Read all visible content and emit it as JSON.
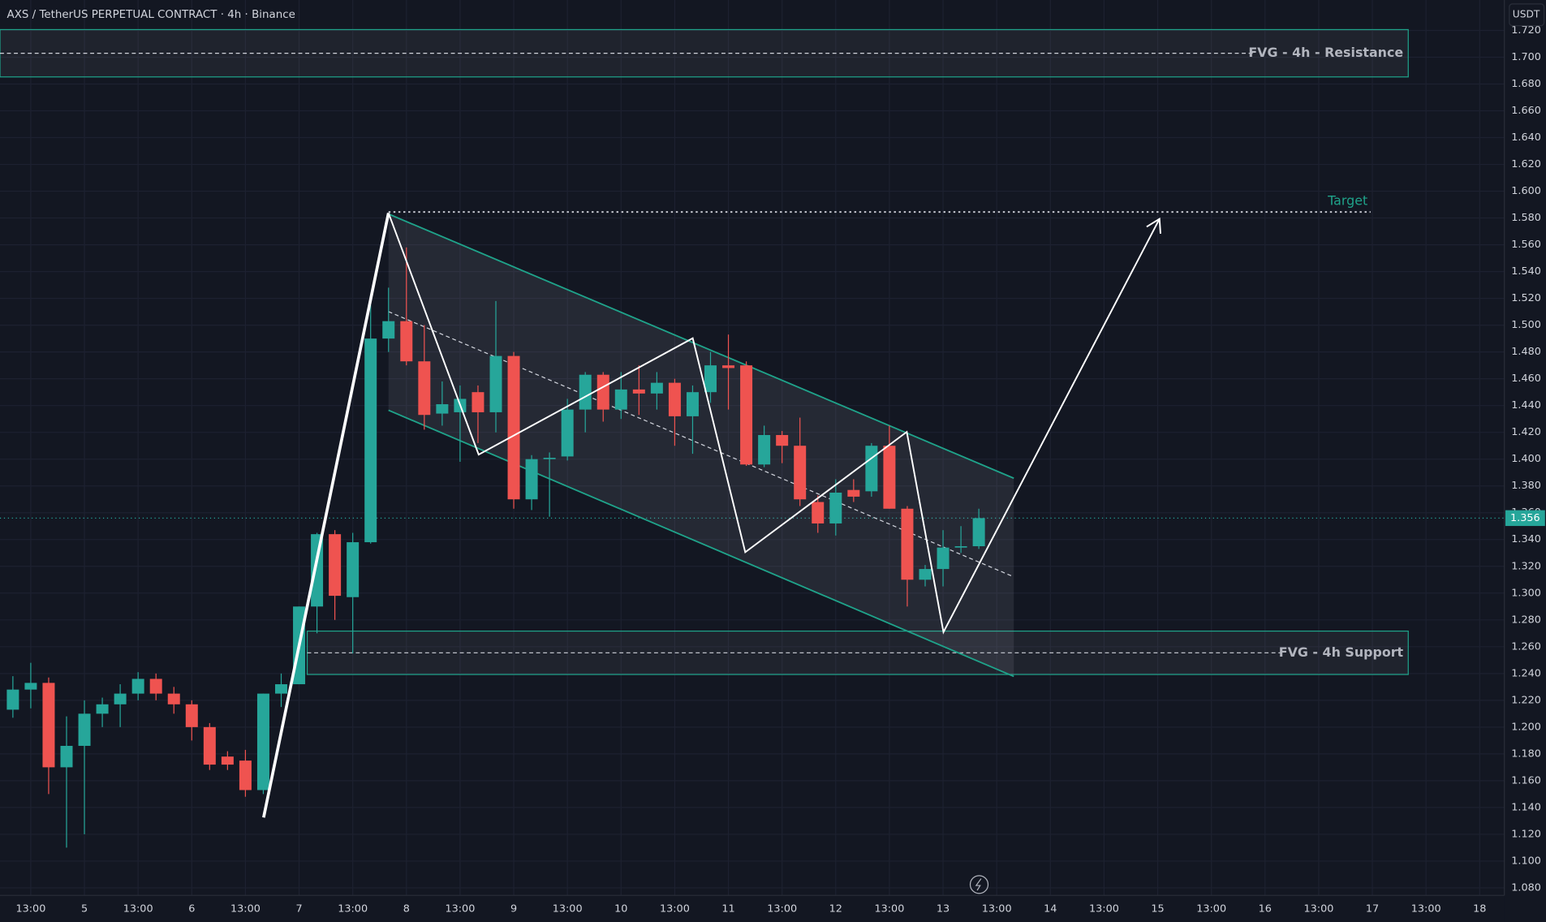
{
  "chart_data": {
    "type": "candlestick",
    "title": "AXS / TetherUS PERPETUAL CONTRACT · 4h · Binance",
    "currency": "USDT",
    "up_color": "#26a69a",
    "down_color": "#ef5350",
    "open": [
      1.213,
      1.228,
      1.233,
      1.17,
      1.186,
      1.21,
      1.217,
      1.225,
      1.236,
      1.225,
      1.217,
      1.2,
      1.178,
      1.175,
      1.153,
      1.225,
      1.232,
      1.29,
      1.344,
      1.297,
      1.338,
      1.49,
      1.503,
      1.473,
      1.434,
      1.435,
      1.45,
      1.435,
      1.477,
      1.37,
      1.4,
      1.402,
      1.437,
      1.463,
      1.437,
      1.452,
      1.449,
      1.457,
      1.432,
      1.45,
      1.47,
      1.47,
      1.396,
      1.418,
      1.41,
      1.368,
      1.352,
      1.377,
      1.376,
      1.41,
      1.363,
      1.31,
      1.318,
      1.334,
      1.335
    ],
    "high": [
      1.238,
      1.248,
      1.237,
      1.208,
      1.22,
      1.222,
      1.232,
      1.241,
      1.24,
      1.23,
      1.22,
      1.203,
      1.182,
      1.183,
      1.225,
      1.24,
      1.29,
      1.345,
      1.347,
      1.345,
      1.515,
      1.528,
      1.558,
      1.5,
      1.458,
      1.455,
      1.455,
      1.518,
      1.48,
      1.403,
      1.405,
      1.445,
      1.465,
      1.465,
      1.465,
      1.47,
      1.465,
      1.46,
      1.455,
      1.48,
      1.493,
      1.473,
      1.425,
      1.421,
      1.431,
      1.373,
      1.385,
      1.385,
      1.412,
      1.425,
      1.365,
      1.321,
      1.347,
      1.35,
      1.363
    ],
    "low": [
      1.207,
      1.214,
      1.15,
      1.11,
      1.12,
      1.2,
      1.2,
      1.22,
      1.22,
      1.21,
      1.19,
      1.168,
      1.168,
      1.148,
      1.15,
      1.215,
      1.232,
      1.27,
      1.28,
      1.255,
      1.337,
      1.48,
      1.47,
      1.422,
      1.425,
      1.398,
      1.412,
      1.42,
      1.363,
      1.362,
      1.357,
      1.399,
      1.42,
      1.428,
      1.43,
      1.433,
      1.437,
      1.41,
      1.404,
      1.442,
      1.437,
      1.395,
      1.394,
      1.397,
      1.365,
      1.345,
      1.343,
      1.368,
      1.372,
      1.363,
      1.29,
      1.305,
      1.305,
      1.33,
      1.333
    ],
    "close": [
      1.228,
      1.233,
      1.17,
      1.186,
      1.21,
      1.217,
      1.225,
      1.236,
      1.225,
      1.217,
      1.2,
      1.172,
      1.172,
      1.153,
      1.225,
      1.232,
      1.29,
      1.344,
      1.298,
      1.338,
      1.49,
      1.503,
      1.473,
      1.433,
      1.441,
      1.445,
      1.435,
      1.477,
      1.37,
      1.4,
      1.401,
      1.437,
      1.463,
      1.437,
      1.452,
      1.449,
      1.457,
      1.432,
      1.45,
      1.47,
      1.468,
      1.396,
      1.418,
      1.41,
      1.37,
      1.352,
      1.375,
      1.372,
      1.41,
      1.363,
      1.31,
      1.318,
      1.334,
      1.335,
      1.356
    ],
    "last_price": 1.356,
    "xlim": [
      -0.72,
      83.38
    ],
    "xticks": [
      {
        "value": 1,
        "label": "13:00"
      },
      {
        "value": 4,
        "label": "5"
      },
      {
        "value": 7,
        "label": "13:00"
      },
      {
        "value": 10,
        "label": "6"
      },
      {
        "value": 13,
        "label": "13:00"
      },
      {
        "value": 16,
        "label": "7"
      },
      {
        "value": 19,
        "label": "13:00"
      },
      {
        "value": 22,
        "label": "8"
      },
      {
        "value": 25,
        "label": "13:00"
      },
      {
        "value": 28,
        "label": "9"
      },
      {
        "value": 31,
        "label": "13:00"
      },
      {
        "value": 34,
        "label": "10"
      },
      {
        "value": 37,
        "label": "13:00"
      },
      {
        "value": 40,
        "label": "11"
      },
      {
        "value": 43,
        "label": "13:00"
      },
      {
        "value": 46,
        "label": "12"
      },
      {
        "value": 49,
        "label": "13:00"
      },
      {
        "value": 52,
        "label": "13"
      },
      {
        "value": 55,
        "label": "13:00"
      },
      {
        "value": 58,
        "label": "14"
      },
      {
        "value": 61,
        "label": "13:00"
      },
      {
        "value": 64,
        "label": "15"
      },
      {
        "value": 67,
        "label": "13:00"
      },
      {
        "value": 70,
        "label": "16"
      },
      {
        "value": 73,
        "label": "13:00"
      },
      {
        "value": 76,
        "label": "17"
      },
      {
        "value": 79,
        "label": "13:00"
      },
      {
        "value": 82,
        "label": "18"
      }
    ],
    "ylim": [
      1.0744,
      1.7427
    ],
    "yticks": [
      {
        "value": 1.08,
        "label": "1.080"
      },
      {
        "value": 1.1,
        "label": "1.100"
      },
      {
        "value": 1.12,
        "label": "1.120"
      },
      {
        "value": 1.14,
        "label": "1.140"
      },
      {
        "value": 1.16,
        "label": "1.160"
      },
      {
        "value": 1.18,
        "label": "1.180"
      },
      {
        "value": 1.2,
        "label": "1.200"
      },
      {
        "value": 1.22,
        "label": "1.220"
      },
      {
        "value": 1.24,
        "label": "1.240"
      },
      {
        "value": 1.26,
        "label": "1.260"
      },
      {
        "value": 1.28,
        "label": "1.280"
      },
      {
        "value": 1.3,
        "label": "1.300"
      },
      {
        "value": 1.32,
        "label": "1.320"
      },
      {
        "value": 1.34,
        "label": "1.340"
      },
      {
        "value": 1.36,
        "label": "1.360"
      },
      {
        "value": 1.38,
        "label": "1.380"
      },
      {
        "value": 1.4,
        "label": "1.400"
      },
      {
        "value": 1.42,
        "label": "1.420"
      },
      {
        "value": 1.44,
        "label": "1.440"
      },
      {
        "value": 1.46,
        "label": "1.460"
      },
      {
        "value": 1.48,
        "label": "1.480"
      },
      {
        "value": 1.5,
        "label": "1.500"
      },
      {
        "value": 1.52,
        "label": "1.520"
      },
      {
        "value": 1.54,
        "label": "1.540"
      },
      {
        "value": 1.56,
        "label": "1.560"
      },
      {
        "value": 1.58,
        "label": "1.580"
      },
      {
        "value": 1.6,
        "label": "1.600"
      },
      {
        "value": 1.62,
        "label": "1.620"
      },
      {
        "value": 1.64,
        "label": "1.640"
      },
      {
        "value": 1.66,
        "label": "1.660"
      },
      {
        "value": 1.68,
        "label": "1.680"
      },
      {
        "value": 1.7,
        "label": "1.700"
      },
      {
        "value": 1.72,
        "label": "1.720"
      }
    ],
    "grid": true,
    "annotations": {
      "resistance": "FVG - 4h - Resistance",
      "support": "FVG - 4h Support",
      "target": "Target"
    }
  }
}
